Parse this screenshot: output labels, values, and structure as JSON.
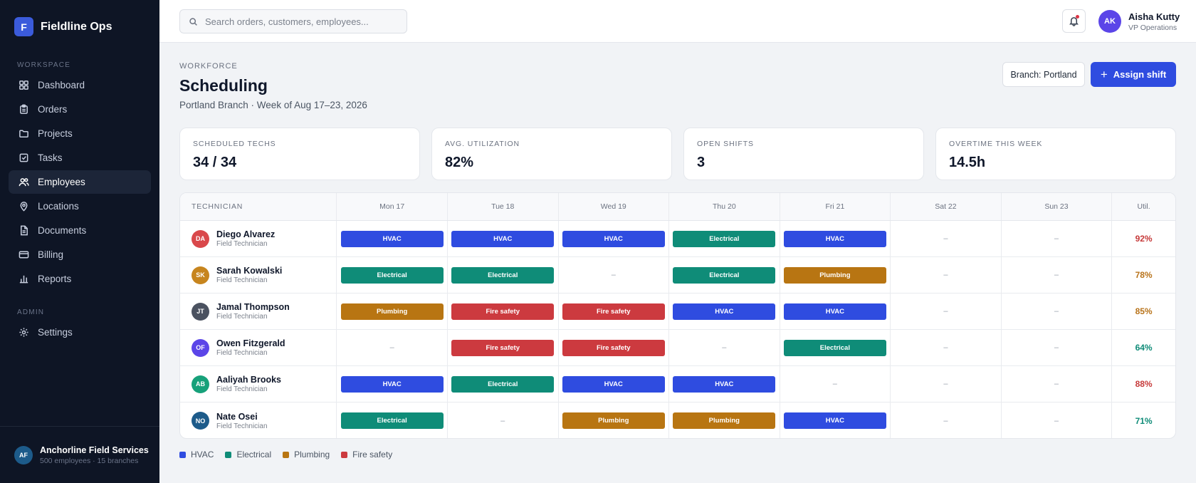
{
  "brand": {
    "logo_letter": "F",
    "name": "Fieldline Ops"
  },
  "sidebar": {
    "workspace_label": "WORKSPACE",
    "admin_label": "ADMIN",
    "items": [
      {
        "label": "Dashboard",
        "icon": "grid-icon"
      },
      {
        "label": "Orders",
        "icon": "clipboard-icon"
      },
      {
        "label": "Projects",
        "icon": "folder-icon"
      },
      {
        "label": "Tasks",
        "icon": "checkbox-icon"
      },
      {
        "label": "Employees",
        "icon": "users-icon",
        "active": true
      },
      {
        "label": "Locations",
        "icon": "map-pin-icon"
      },
      {
        "label": "Documents",
        "icon": "document-icon"
      },
      {
        "label": "Billing",
        "icon": "credit-card-icon"
      },
      {
        "label": "Reports",
        "icon": "bar-chart-icon"
      }
    ],
    "admin_items": [
      {
        "label": "Settings",
        "icon": "gear-icon"
      }
    ],
    "org": {
      "initials": "AF",
      "name": "Anchorline Field Services",
      "sub": "500 employees · 15 branches"
    }
  },
  "topbar": {
    "search_placeholder": "Search orders, customers, employees...",
    "user": {
      "initials": "AK",
      "name": "Aisha Kutty",
      "role": "VP Operations"
    }
  },
  "header": {
    "eyebrow": "WORKFORCE",
    "title": "Scheduling",
    "subtitle": "Portland Branch · Week of Aug 17–23, 2026",
    "branch_button": "Branch: Portland",
    "assign_button": "Assign shift"
  },
  "stats": [
    {
      "label": "SCHEDULED TECHS",
      "value": "34 / 34"
    },
    {
      "label": "AVG. UTILIZATION",
      "value": "82%"
    },
    {
      "label": "OPEN SHIFTS",
      "value": "3"
    },
    {
      "label": "OVERTIME THIS WEEK",
      "value": "14.5h"
    }
  ],
  "schedule": {
    "tech_header": "TECHNICIAN",
    "util_header": "Util.",
    "empty": "–",
    "days": [
      "Mon 17",
      "Tue 18",
      "Wed 19",
      "Thu 20",
      "Fri 21",
      "Sat 22",
      "Sun 23"
    ],
    "shift_colors": {
      "HVAC": "#2f4ce0",
      "Electrical": "#0f8c78",
      "Plumbing": "#b87512",
      "Fire safety": "#cc3a3f"
    },
    "rows": [
      {
        "initials": "DA",
        "avatar": "#d9484b",
        "name": "Diego Alvarez",
        "role": "Field Technician",
        "shifts": [
          "HVAC",
          "HVAC",
          "HVAC",
          "Electrical",
          "HVAC",
          "",
          ""
        ],
        "util": "92%",
        "util_color": "#c63a3a"
      },
      {
        "initials": "SK",
        "avatar": "#c7851e",
        "name": "Sarah Kowalski",
        "role": "Field Technician",
        "shifts": [
          "Electrical",
          "Electrical",
          "",
          "Electrical",
          "Plumbing",
          "",
          ""
        ],
        "util": "78%",
        "util_color": "#b8731a"
      },
      {
        "initials": "JT",
        "avatar": "#4b5260",
        "name": "Jamal Thompson",
        "role": "Field Technician",
        "shifts": [
          "Plumbing",
          "Fire safety",
          "Fire safety",
          "HVAC",
          "HVAC",
          "",
          ""
        ],
        "util": "85%",
        "util_color": "#b8731a"
      },
      {
        "initials": "OF",
        "avatar": "#5b45e8",
        "name": "Owen Fitzgerald",
        "role": "Field Technician",
        "shifts": [
          "",
          "Fire safety",
          "Fire safety",
          "",
          "Electrical",
          "",
          ""
        ],
        "util": "64%",
        "util_color": "#0f8c78"
      },
      {
        "initials": "AB",
        "avatar": "#17a17a",
        "name": "Aaliyah Brooks",
        "role": "Field Technician",
        "shifts": [
          "HVAC",
          "Electrical",
          "HVAC",
          "HVAC",
          "",
          "",
          ""
        ],
        "util": "88%",
        "util_color": "#c63a3a"
      },
      {
        "initials": "NO",
        "avatar": "#1d5b8a",
        "name": "Nate Osei",
        "role": "Field Technician",
        "shifts": [
          "Electrical",
          "",
          "Plumbing",
          "Plumbing",
          "HVAC",
          "",
          ""
        ],
        "util": "71%",
        "util_color": "#0f8c78"
      }
    ]
  },
  "legend": [
    {
      "label": "HVAC",
      "color": "#2f4ce0"
    },
    {
      "label": "Electrical",
      "color": "#0f8c78"
    },
    {
      "label": "Plumbing",
      "color": "#b87512"
    },
    {
      "label": "Fire safety",
      "color": "#cc3a3f"
    }
  ]
}
